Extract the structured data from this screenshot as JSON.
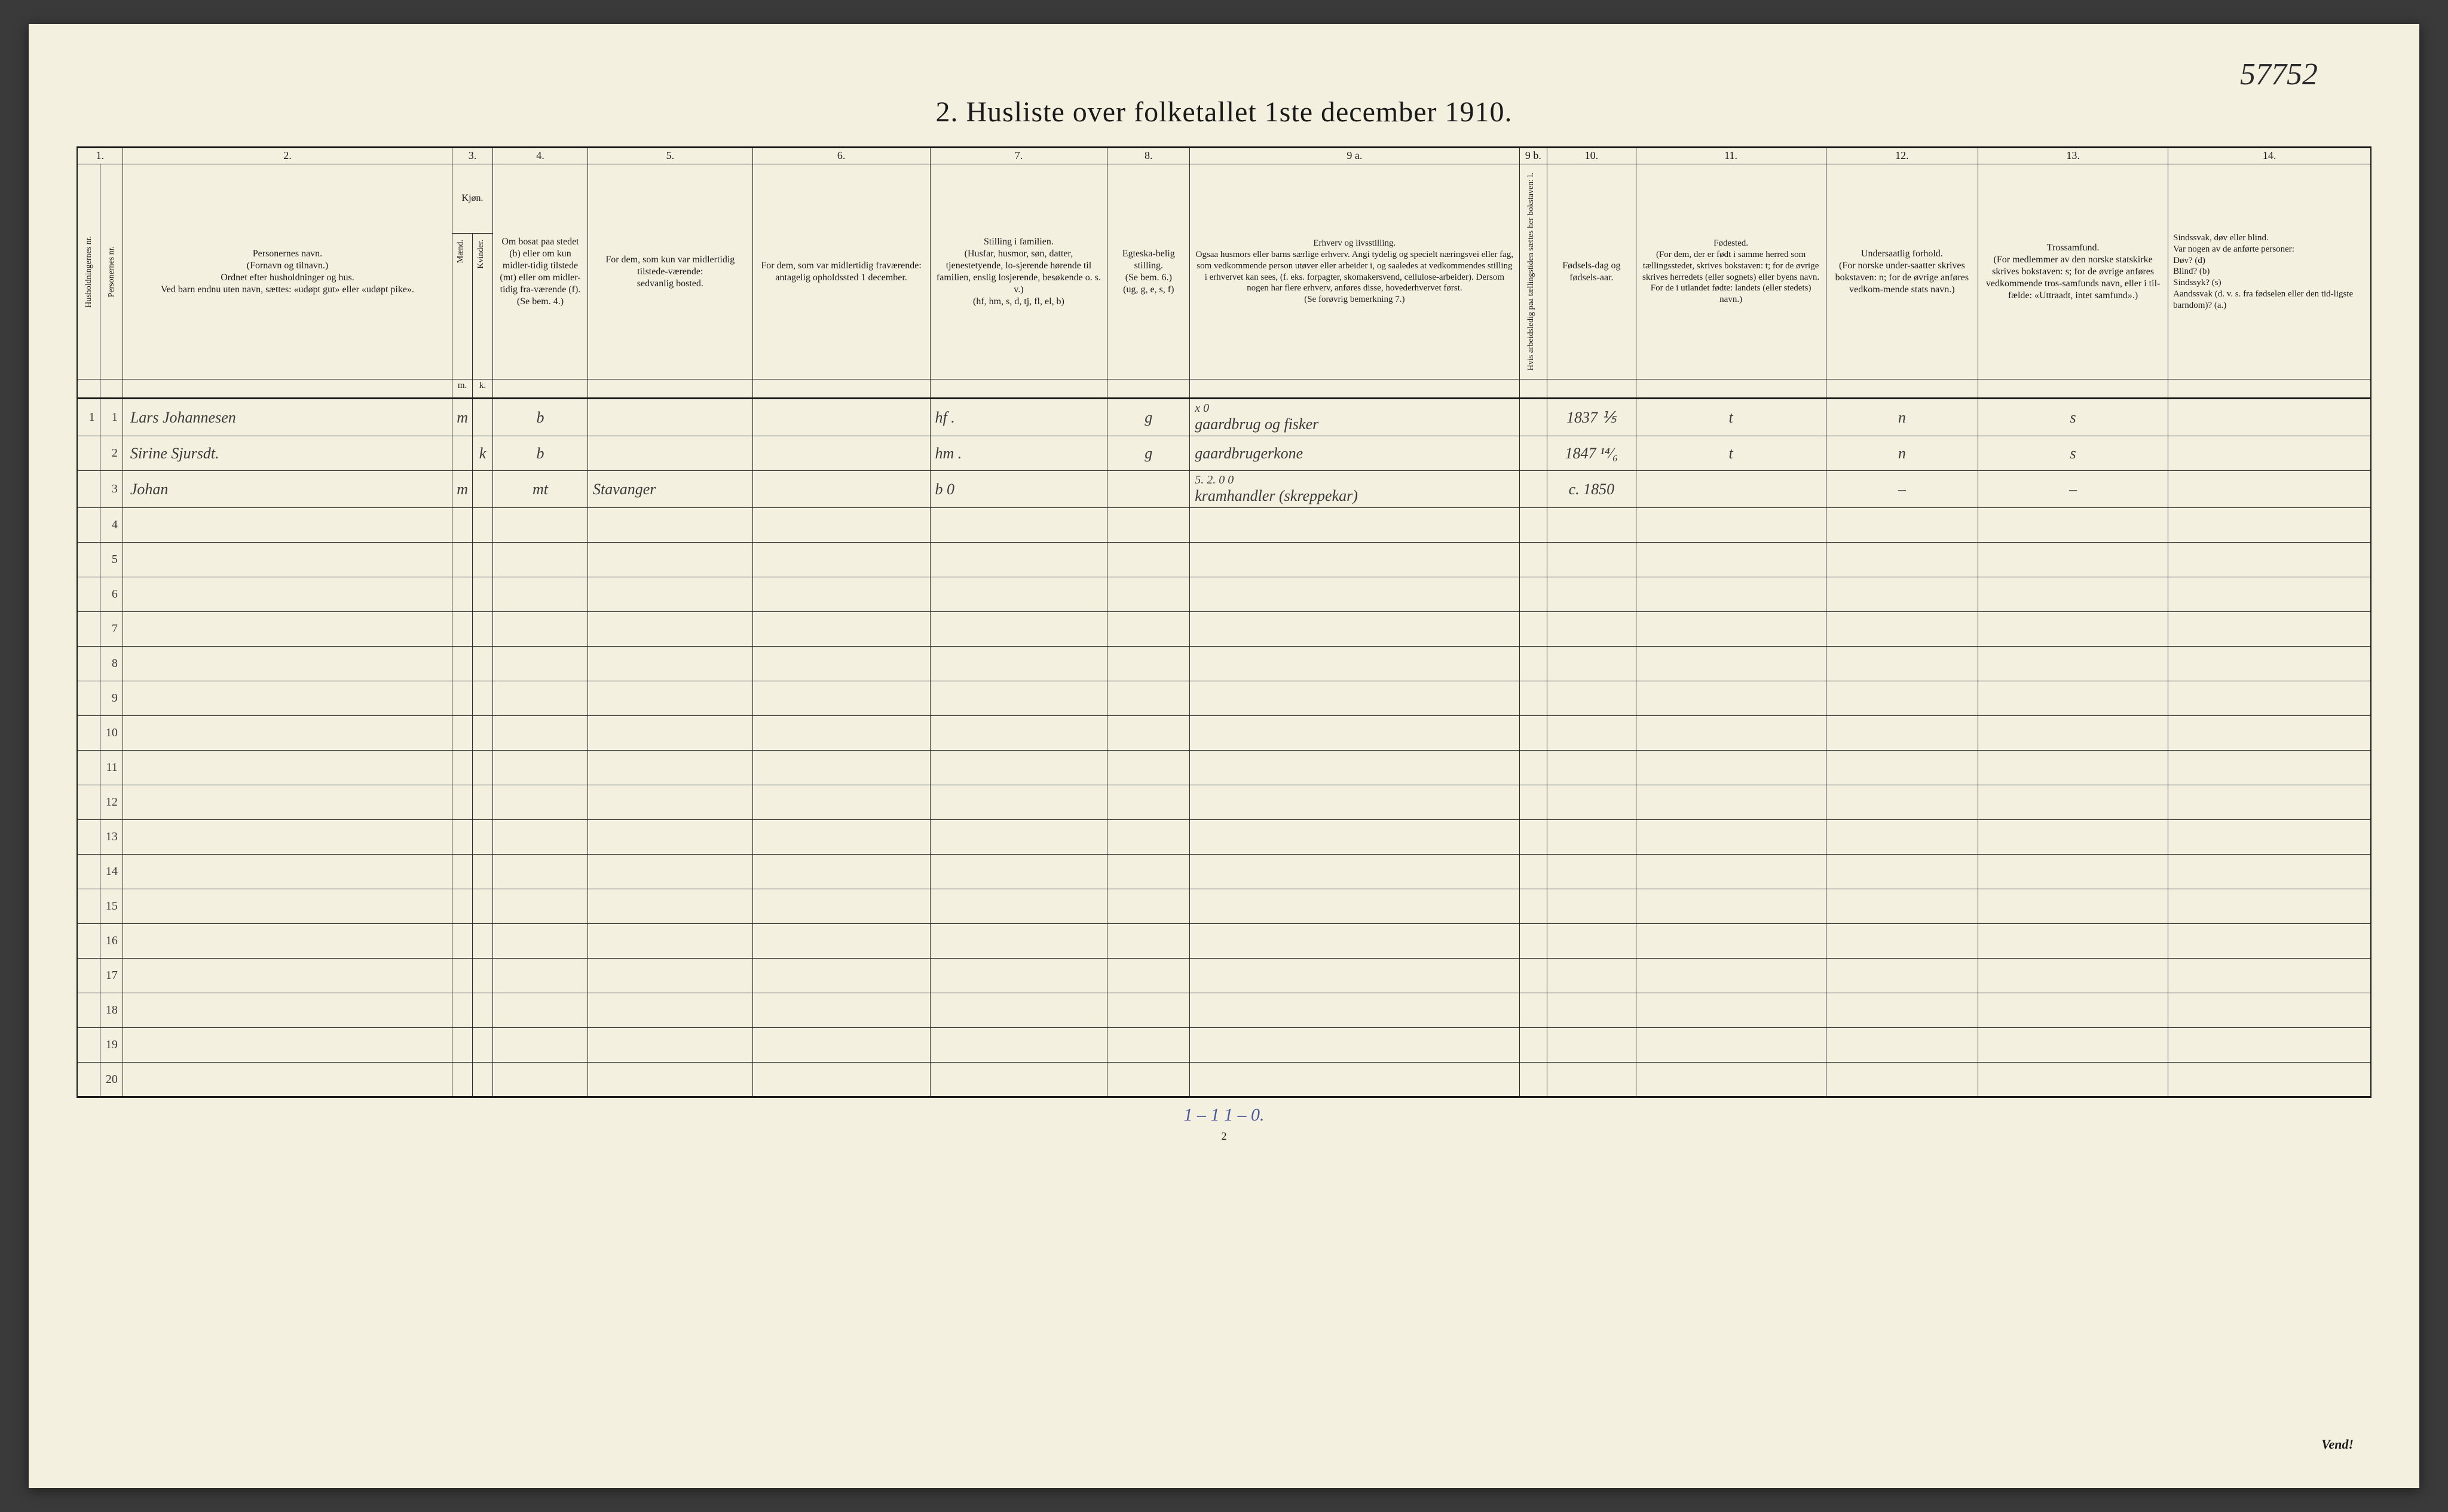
{
  "document": {
    "handwritten_top_right": "57752",
    "title": "2.  Husliste over folketallet 1ste december 1910.",
    "page_number": "2",
    "turn_page": "Vend!",
    "footer_annotation": "1 – 1     1 – 0."
  },
  "columns": {
    "numbers": [
      "1.",
      "2.",
      "3.",
      "4.",
      "5.",
      "6.",
      "7.",
      "8.",
      "9 a.",
      "9 b.",
      "10.",
      "11.",
      "12.",
      "13.",
      "14."
    ],
    "vertical_1a": "Husholdningernes nr.",
    "vertical_1b": "Personernes nr.",
    "h2": "Personernes navn.\n(Fornavn og tilnavn.)\nOrdnet efter husholdninger og hus.\nVed barn endnu uten navn, sættes: «udøpt gut» eller «udøpt pike».",
    "h3": "Kjøn.",
    "h3_sub_m": "Mænd.",
    "h3_sub_k": "Kvinder.",
    "h3_foot_m": "m.",
    "h3_foot_k": "k.",
    "h4": "Om bosat paa stedet (b) eller om kun midler-tidig tilstede (mt) eller om midler-tidig fra-værende (f).\n(Se bem. 4.)",
    "h5": "For dem, som kun var midlertidig tilstede-værende:\nsedvanlig bosted.",
    "h6": "For dem, som var midlertidig fraværende:\nantagelig opholdssted 1 december.",
    "h7": "Stilling i familien.\n(Husfar, husmor, søn, datter, tjenestetyende, lo-sjerende hørende til familien, enslig losjerende, besøkende o. s. v.)\n(hf, hm, s, d, tj, fl, el, b)",
    "h8": "Egteska-belig stilling.\n(Se bem. 6.)\n(ug, g, e, s, f)",
    "h9a": "Erhverv og livsstilling.\nOgsaa husmors eller barns særlige erhverv. Angi tydelig og specielt næringsvei eller fag, som vedkommende person utøver eller arbeider i, og saaledes at vedkommendes stilling i erhvervet kan sees, (f. eks. forpagter, skomakersvend, cellulose-arbeider). Dersom nogen har flere erhverv, anføres disse, hovederhvervet først.\n(Se forøvrig bemerkning 7.)",
    "h9b": "Hvis arbeidsledig paa tællingstiden sættes her bokstaven: l.",
    "h10": "Fødsels-dag og fødsels-aar.",
    "h11": "Fødested.\n(For dem, der er født i samme herred som tællingsstedet, skrives bokstaven: t; for de øvrige skrives herredets (eller sognets) eller byens navn. For de i utlandet fødte: landets (eller stedets) navn.)",
    "h12": "Undersaatlig forhold.\n(For norske under-saatter skrives bokstaven: n; for de øvrige anføres vedkom-mende stats navn.)",
    "h13": "Trossamfund.\n(For medlemmer av den norske statskirke skrives bokstaven: s; for de øvrige anføres vedkommende tros-samfunds navn, eller i til-fælde: «Uttraadt, intet samfund».)",
    "h14": "Sindssvak, døv eller blind.\nVar nogen av de anførte personer:\nDøv?        (d)\nBlind?       (b)\nSindssyk?  (s)\nAandssvak (d. v. s. fra fødselen eller den tid-ligste barndom)?  (a.)"
  },
  "col_widths": {
    "c1a": 36,
    "c1b": 36,
    "c2": 520,
    "c3m": 32,
    "c3k": 32,
    "c4": 150,
    "c5": 260,
    "c6": 280,
    "c7": 280,
    "c8": 130,
    "c9a": 520,
    "c9b": 44,
    "c10": 140,
    "c11": 300,
    "c12": 240,
    "c13": 300,
    "c14": 320
  },
  "rows": [
    {
      "hh": "1",
      "pn": "1",
      "name": "Lars Johannesen",
      "m": "m",
      "k": "",
      "b": "b",
      "c5": "",
      "c6": "",
      "c7": "hf   .",
      "c8": "g",
      "c9a_top": "x 0",
      "c9a": "gaardbrug og fisker",
      "c9b": "",
      "c10": "1837 ⅕",
      "c11": "t",
      "c12": "n",
      "c13": "s",
      "c14": ""
    },
    {
      "hh": "",
      "pn": "2",
      "name": "Sirine Sjursdt.",
      "m": "",
      "k": "k",
      "b": "b",
      "c5": "",
      "c6": "",
      "c7": "hm  .",
      "c8": "g",
      "c9a_top": "",
      "c9a": "gaardbrugerkone",
      "c9b": "",
      "c10": "1847 ¹⁴⁄₆",
      "c11": "t",
      "c12": "n",
      "c13": "s",
      "c14": ""
    },
    {
      "hh": "",
      "pn": "3",
      "name": "Johan",
      "m": "m",
      "k": "",
      "b": "mt",
      "c5": "Stavanger",
      "c6": "",
      "c7": "b    0",
      "c8": "",
      "c9a_top": "5. 2.  0 0",
      "c9a": "kramhandler (skreppekar)",
      "c9b": "",
      "c10": "c. 1850",
      "c10_red": true,
      "c11": "",
      "c12": "–",
      "c13": "–",
      "c14": ""
    }
  ],
  "empty_row_count": 17,
  "styling": {
    "page_bg": "#f4f0e0",
    "ink": "#1a1a1a",
    "handwriting": "#3a3a3a",
    "red_ink": "#c0392b",
    "blue_ink": "#4a5a9a",
    "header_fontsize": 16,
    "body_fontsize": 26,
    "title_fontsize": 48
  }
}
